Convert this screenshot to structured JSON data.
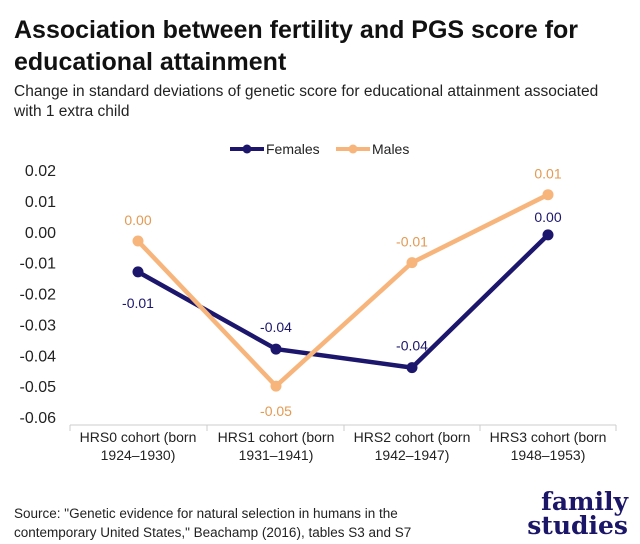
{
  "title": "Association between fertility and PGS score for educational attainment",
  "subtitle": "Change in standard deviations of genetic score for educational attainment associated with 1 extra child",
  "source": "Source: \"Genetic evidence for natural selection in humans in the contemporary United States,\" Beachamp (2016), tables S3 and S7",
  "logo": {
    "line1": "family",
    "line2": "studies"
  },
  "chart_data": {
    "type": "line",
    "title": "Association between fertility and PGS score for educational attainment",
    "xlabel": "",
    "ylabel": "",
    "ylim": [
      -0.06,
      0.02
    ],
    "yticks": [
      "0.02",
      "0.01",
      "0.00",
      "-0.01",
      "-0.02",
      "-0.03",
      "-0.04",
      "-0.05",
      "-0.06"
    ],
    "ytick_values": [
      0.02,
      0.01,
      0,
      -0.01,
      -0.02,
      -0.03,
      -0.04,
      -0.05,
      -0.06
    ],
    "categories": [
      [
        "HRS0 cohort (born",
        "1924–1930)"
      ],
      [
        "HRS1 cohort (born",
        "1931–1941)"
      ],
      [
        "HRS2 cohort (born",
        "1942–1947)"
      ],
      [
        "HRS3 cohort (born",
        "1948–1953)"
      ]
    ],
    "legend_position": "top-center",
    "grid": false,
    "series": [
      {
        "name": "Females",
        "color": "#1c176c",
        "label_color": "#1c176c",
        "values": [
          -0.013,
          -0.038,
          -0.044,
          -0.001
        ],
        "labels": [
          "-0.01",
          "-0.04",
          "-0.04",
          "0.00"
        ]
      },
      {
        "name": "Males",
        "color": "#f7b57c",
        "label_color": "#e39a52",
        "values": [
          -0.003,
          -0.05,
          -0.01,
          0.012
        ],
        "labels": [
          "0.00",
          "-0.05",
          "-0.01",
          "0.01"
        ]
      }
    ]
  }
}
